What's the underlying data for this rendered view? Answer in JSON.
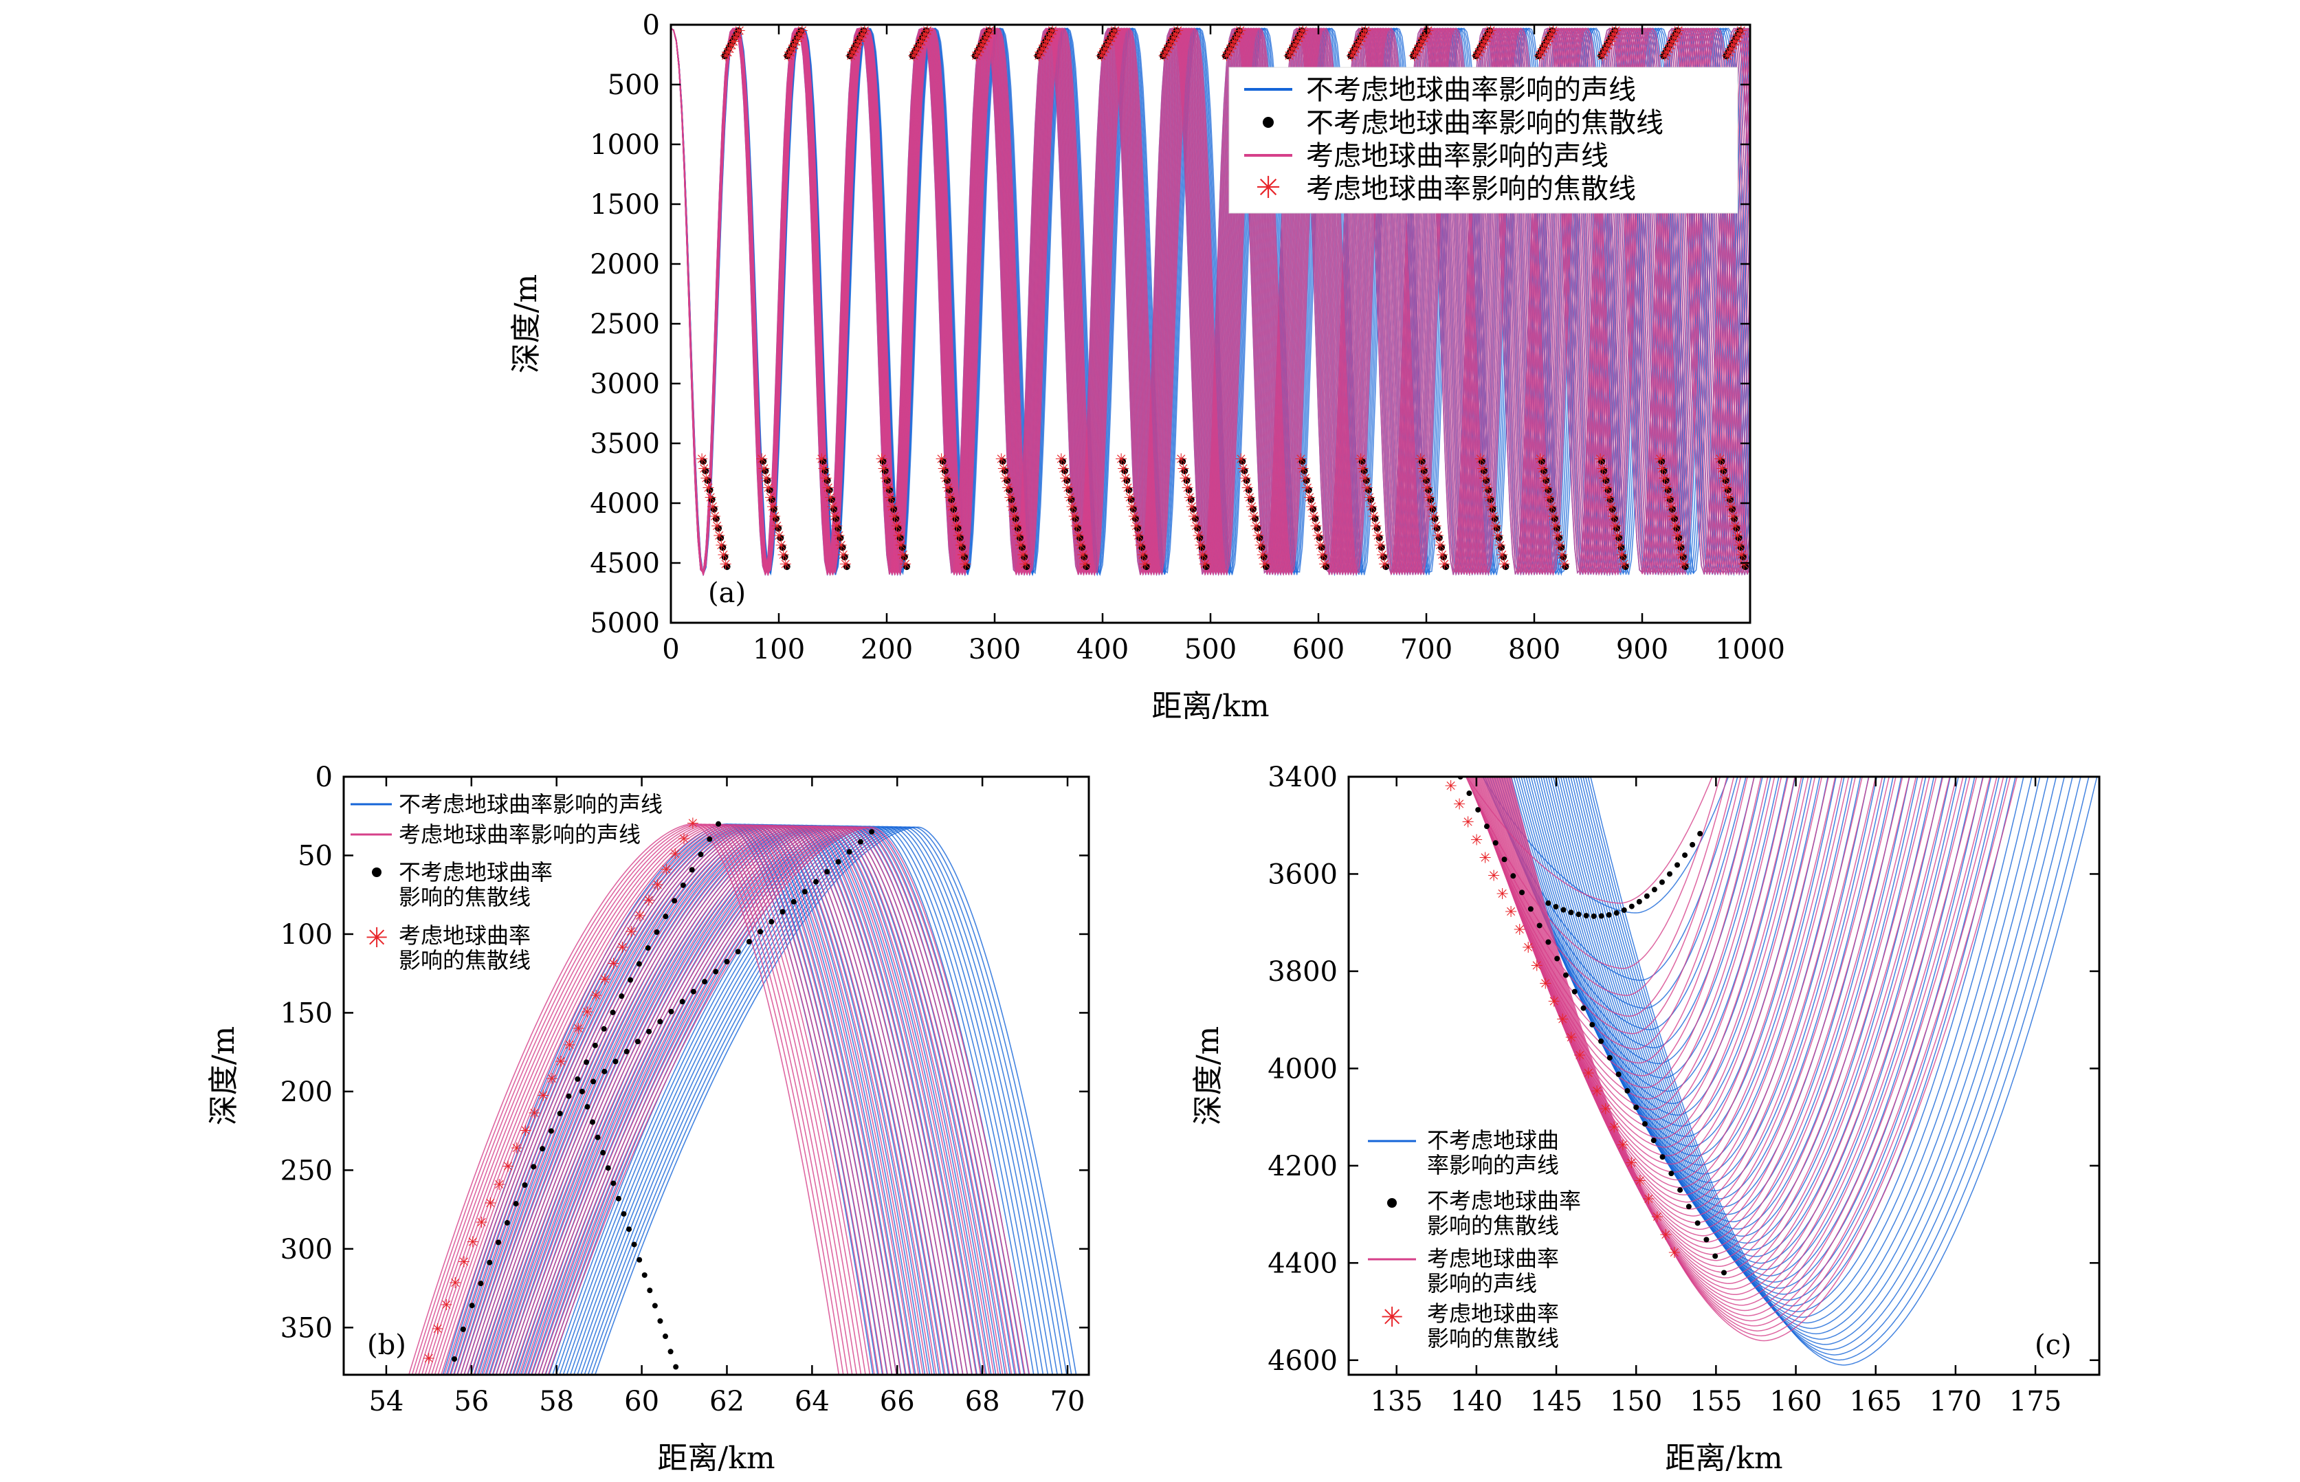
{
  "colors": {
    "blue": "#1565d8",
    "pink": "#d6408a",
    "black": "#000000",
    "red": "#e8252a"
  },
  "chart_data": [
    {
      "type": "line",
      "panel": "(a)",
      "xlabel": "距离/km",
      "ylabel": "深度/m",
      "xlim": [
        0,
        1000
      ],
      "ylim": [
        5000,
        0
      ],
      "xticks": [
        "0",
        "100",
        "200",
        "300",
        "400",
        "500",
        "600",
        "700",
        "800",
        "900",
        "1000"
      ],
      "yticks": [
        "0",
        "500",
        "1000",
        "1500",
        "2000",
        "2500",
        "3000",
        "3500",
        "4000",
        "4500",
        "5000"
      ],
      "legend": [
        "不考虑地球曲率影响的声线",
        "不考虑地球曲率影响的焦散线",
        "考虑地球曲率影响的声线",
        "考虑地球曲率影响的焦散线"
      ],
      "cycle_period_km": 58,
      "ray_max_depth_m": 4600,
      "ray_min_depth_m": 30
    },
    {
      "type": "line",
      "panel": "(b)",
      "xlabel": "距离/km",
      "ylabel": "深度/m",
      "xlim": [
        53,
        70.5
      ],
      "ylim": [
        380,
        0
      ],
      "xticks": [
        "54",
        "56",
        "58",
        "60",
        "62",
        "64",
        "66",
        "68",
        "70"
      ],
      "yticks": [
        "0",
        "50",
        "100",
        "150",
        "200",
        "250",
        "300",
        "350"
      ],
      "legend": [
        "不考虑地球曲率影响的声线",
        "考虑地球曲率影响的声线",
        "不考虑地球曲率",
        "影响的焦散线",
        "考虑地球曲率",
        "影响的焦散线"
      ],
      "cusp": {
        "x_km": 58.6,
        "depth_m": 200
      },
      "turning_points_km": [
        62,
        66.5
      ],
      "turning_depth_m": 30
    },
    {
      "type": "line",
      "panel": "(c)",
      "xlabel": "距离/km",
      "ylabel": "深度/m",
      "xlim": [
        132,
        179
      ],
      "ylim": [
        4630,
        3400
      ],
      "xticks": [
        "135",
        "140",
        "145",
        "150",
        "155",
        "160",
        "165",
        "170",
        "175"
      ],
      "yticks": [
        "3400",
        "3600",
        "3800",
        "4000",
        "4200",
        "4400",
        "4600"
      ],
      "legend": [
        "不考虑地球曲",
        "率影响的声线",
        "不考虑地球曲率",
        "影响的焦散线",
        "考虑地球曲率",
        "影响的声线",
        "考虑地球曲率",
        "影响的焦散线"
      ],
      "cusp": {
        "x_km": 144.5,
        "depth_m": 3660
      },
      "bottom_depth_m": 4610
    }
  ]
}
